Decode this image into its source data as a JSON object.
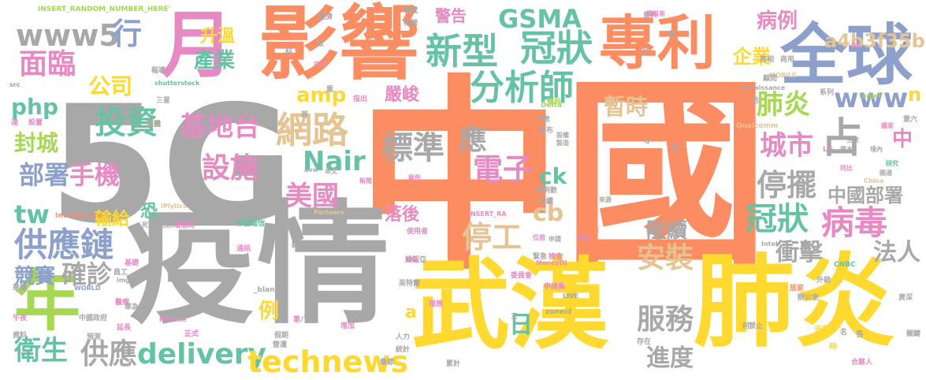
{
  "palette": {
    "gray": "#a8a8a8",
    "orange": "#fc8d62",
    "yellow": "#ffd92f",
    "blue": "#8da0cb",
    "pink": "#e78ac3",
    "green": "#66c2a5",
    "lime": "#a6d854",
    "tan": "#e5c494"
  },
  "words": [
    {
      "id": "zhongguo",
      "text": "中國",
      "color": "orange"
    },
    {
      "id": "5g",
      "text": "5G",
      "color": "gray"
    },
    {
      "id": "yiqing",
      "text": "疫情",
      "color": "gray"
    },
    {
      "id": "wuhan",
      "text": "武漢",
      "color": "yellow"
    },
    {
      "id": "feiyan-big",
      "text": "肺炎",
      "color": "yellow"
    },
    {
      "id": "yingxiang",
      "text": "影響",
      "color": "orange"
    },
    {
      "id": "zhuanli",
      "text": "專利",
      "color": "orange"
    },
    {
      "id": "quanqiu",
      "text": "全球",
      "color": "blue"
    },
    {
      "id": "yue",
      "text": "月",
      "color": "pink"
    },
    {
      "id": "nian",
      "text": "年",
      "color": "lime"
    },
    {
      "id": "xinxing",
      "text": "新型",
      "color": "green"
    },
    {
      "id": "guanzhuang-top",
      "text": "冠狀",
      "color": "green"
    },
    {
      "id": "gsma",
      "text": "GSMA",
      "color": "green"
    },
    {
      "id": "a4b3f35b",
      "text": "a4b3f35b",
      "color": "tan"
    },
    {
      "id": "www5",
      "text": "www5",
      "color": "gray"
    },
    {
      "id": "mianlin",
      "text": "面臨",
      "color": "pink"
    },
    {
      "id": "hang",
      "text": "行",
      "color": "blue"
    },
    {
      "id": "gongsi",
      "text": "公司",
      "color": "yellow"
    },
    {
      "id": "shengwen",
      "text": "升溫",
      "color": "yellow"
    },
    {
      "id": "chanye",
      "text": "產業",
      "color": "green"
    },
    {
      "id": "fenxishi",
      "text": "分析師",
      "color": "green"
    },
    {
      "id": "bingli",
      "text": "病例",
      "color": "pink"
    },
    {
      "id": "qiye",
      "text": "企業",
      "color": "yellow"
    },
    {
      "id": "zhan",
      "text": "占",
      "color": "gray"
    },
    {
      "id": "php",
      "text": "php",
      "color": "green"
    },
    {
      "id": "touzi",
      "text": "投資",
      "color": "green"
    },
    {
      "id": "amp",
      "text": "amp",
      "color": "yellow"
    },
    {
      "id": "yanjun",
      "text": "嚴峻",
      "color": "pink"
    },
    {
      "id": "zanshi",
      "text": "暫時",
      "color": "tan"
    },
    {
      "id": "feiyan-small",
      "text": "肺炎",
      "color": "lime"
    },
    {
      "id": "www",
      "text": "www",
      "color": "blue"
    },
    {
      "id": "fengcheng",
      "text": "封城",
      "color": "lime"
    },
    {
      "id": "jidetai",
      "text": "基地台",
      "color": "pink"
    },
    {
      "id": "wanglu",
      "text": "網路",
      "color": "tan"
    },
    {
      "id": "biaozhun",
      "text": "標準",
      "color": "gray"
    },
    {
      "id": "ying",
      "text": "應",
      "color": "gray"
    },
    {
      "id": "dianzi",
      "text": "電子",
      "color": "pink"
    },
    {
      "id": "chengshi",
      "text": "城市",
      "color": "pink"
    },
    {
      "id": "zhong",
      "text": "中",
      "color": "pink"
    },
    {
      "id": "bushu",
      "text": "部署",
      "color": "blue"
    },
    {
      "id": "shouji",
      "text": "手機",
      "color": "pink"
    },
    {
      "id": "sheshi",
      "text": "設施",
      "color": "pink"
    },
    {
      "id": "nair",
      "text": "Nair",
      "color": "green"
    },
    {
      "id": "ck",
      "text": "ck",
      "color": "green"
    },
    {
      "id": "tingbai",
      "text": "停擺",
      "color": "gray"
    },
    {
      "id": "zhongguo-bushu",
      "text": "中國部署",
      "color": "gray"
    },
    {
      "id": "tw",
      "text": "tw",
      "color": "green"
    },
    {
      "id": "meiguo",
      "text": "美國",
      "color": "pink"
    },
    {
      "id": "kong",
      "text": "恐",
      "color": "green"
    },
    {
      "id": "href",
      "text": "href",
      "color": "gray"
    },
    {
      "id": "cb",
      "text": "cb",
      "color": "tan"
    },
    {
      "id": "guanzhuang",
      "text": "冠狀",
      "color": "green"
    },
    {
      "id": "bingdu",
      "text": "病毒",
      "color": "pink"
    },
    {
      "id": "gongyinglian",
      "text": "供應鏈",
      "color": "blue"
    },
    {
      "id": "shuji",
      "text": "輸給",
      "color": "yellow"
    },
    {
      "id": "luohou",
      "text": "落後",
      "color": "pink"
    },
    {
      "id": "tinggong",
      "text": "停工",
      "color": "tan"
    },
    {
      "id": "chongji",
      "text": "衝擊",
      "color": "gray"
    },
    {
      "id": "faren",
      "text": "法人",
      "color": "gray"
    },
    {
      "id": "jingsai",
      "text": "競賽",
      "color": "blue"
    },
    {
      "id": "quezhen",
      "text": "確診",
      "color": "gray"
    },
    {
      "id": "anzhuang",
      "text": "安裝",
      "color": "tan"
    },
    {
      "id": "luxu",
      "text": "陸續",
      "color": "gray"
    },
    {
      "id": "li",
      "text": "例",
      "color": "yellow"
    },
    {
      "id": "ri",
      "text": "日",
      "color": "green"
    },
    {
      "id": "fuwu",
      "text": "服務",
      "color": "gray"
    },
    {
      "id": "weisheng",
      "text": "衛生",
      "color": "green"
    },
    {
      "id": "gongying",
      "text": "供應",
      "color": "gray"
    },
    {
      "id": "delivery",
      "text": "delivery",
      "color": "green"
    },
    {
      "id": "technews",
      "text": "technews",
      "color": "yellow"
    },
    {
      "id": "jindu",
      "text": "進度",
      "color": "gray"
    },
    {
      "id": "a",
      "text": "a",
      "color": "yellow"
    },
    {
      "id": "n",
      "text": "n",
      "color": "yellow"
    },
    {
      "id": "jinggao",
      "text": "警告",
      "color": "pink"
    },
    {
      "id": "insert-random",
      "text": "INSERT_RANDOM_NUMBER_HERE'",
      "color": "lime"
    },
    {
      "id": "shutterstock",
      "text": "shutterstock",
      "color": "green"
    },
    {
      "id": "renaissance",
      "text": "Renaissance",
      "color": "gray"
    },
    {
      "id": "mobile",
      "text": "MOBILE",
      "color": "tan"
    },
    {
      "id": "qualcomm",
      "text": "Qualcomm",
      "color": "tan"
    },
    {
      "id": "delta",
      "text": "Delta",
      "color": "lime"
    },
    {
      "id": "target",
      "text": "target",
      "color": "lime"
    },
    {
      "id": "vinod",
      "text": "Vinod",
      "color": "gray"
    },
    {
      "id": "iplytics",
      "text": "IPlytics",
      "color": "tan"
    },
    {
      "id": "intelligence",
      "text": "Intelligence",
      "color": "orange"
    },
    {
      "id": "partners",
      "text": "Partners",
      "color": "tan"
    },
    {
      "id": "insert-ra",
      "text": "INSERT_RA",
      "color": "pink"
    },
    {
      "id": "moneydj",
      "text": "MoneyDJ",
      "color": "pink"
    },
    {
      "id": "intel",
      "text": "Intel",
      "color": "gray"
    },
    {
      "id": "cnbc",
      "text": "CNBC",
      "color": "green"
    },
    {
      "id": "zoneid",
      "text": "zoneid",
      "color": "gray"
    },
    {
      "id": "live",
      "text": "LIVE",
      "color": "blue"
    },
    {
      "id": "world",
      "text": "WORLD",
      "color": "blue"
    },
    {
      "id": "iphone",
      "text": "iPhone",
      "color": "pink"
    },
    {
      "id": "img",
      "text": "img",
      "color": "gray"
    },
    {
      "id": "blank",
      "text": "_blank'",
      "color": "gray"
    },
    {
      "id": "avw",
      "text": "avw",
      "color": "gray"
    },
    {
      "id": "src",
      "text": "src",
      "color": "blue"
    },
    {
      "id": "lg",
      "text": "LG",
      "color": "pink"
    },
    {
      "id": "se",
      "text": "SE",
      "color": "pink"
    },
    {
      "id": "china",
      "text": "China",
      "color": "tan"
    },
    {
      "id": "g",
      "text": "G",
      "color": "gray"
    },
    {
      "id": "zhongguo-dianxin",
      "text": "中國電信",
      "color": "green"
    },
    {
      "id": "tongxun",
      "text": "通訊",
      "color": "pink"
    },
    {
      "id": "xinnian",
      "text": "新年",
      "color": "gray"
    },
    {
      "id": "yanchi",
      "text": "延伸",
      "color": "gray"
    },
    {
      "id": "gaotong",
      "text": "高通",
      "color": "gray"
    },
    {
      "id": "shiyongzhe",
      "text": "使用者",
      "color": "pink"
    },
    {
      "id": "zhiqu",
      "text": "指出",
      "color": "pink"
    },
    {
      "id": "jianxun",
      "text": "簡訊",
      "color": "lime"
    },
    {
      "id": "fabu",
      "text": "發布",
      "color": "gray"
    },
    {
      "id": "jianshu",
      "text": "件數",
      "color": "gray"
    },
    {
      "id": "shebei",
      "text": "設備",
      "color": "gray"
    },
    {
      "id": "zhizao",
      "text": "製造",
      "color": "gray"
    },
    {
      "id": "bingli-shu",
      "text": "病例數",
      "color": "gray"
    },
    {
      "id": "chixu",
      "text": "持續",
      "color": "gray"
    },
    {
      "id": "xinwen",
      "text": "新聞",
      "color": "pink"
    },
    {
      "id": "baogao",
      "text": "報告",
      "color": "pink"
    },
    {
      "id": "benwen",
      "text": "本文",
      "color": "gray"
    },
    {
      "id": "zhongyang",
      "text": "中央",
      "color": "pink"
    },
    {
      "id": "guojia",
      "text": "國家",
      "color": "pink"
    },
    {
      "id": "shengchan",
      "text": "生產",
      "color": "gray"
    },
    {
      "id": "ziben",
      "text": "資本",
      "color": "gray"
    },
    {
      "id": "jingnei",
      "text": "境內",
      "color": "gray"
    },
    {
      "id": "yanjiu",
      "text": "研究",
      "color": "green"
    },
    {
      "id": "kaitong",
      "text": "開通",
      "color": "gray"
    },
    {
      "id": "tongbi",
      "text": "同比",
      "color": "pink"
    },
    {
      "id": "laiyuan",
      "text": "來源",
      "color": "gray"
    },
    {
      "id": "fangyi",
      "text": "防疫",
      "color": "orange"
    },
    {
      "id": "paiming",
      "text": "排名",
      "color": "gray"
    },
    {
      "id": "shijian",
      "text": "時程",
      "color": "pink"
    },
    {
      "id": "weiju",
      "text": "位居",
      "color": "pink"
    },
    {
      "id": "shenqing",
      "text": "申請",
      "color": "gray"
    },
    {
      "id": "shenqingan",
      "text": "申請案",
      "color": "pink"
    },
    {
      "id": "jijian",
      "text": "緊急",
      "color": "gray"
    },
    {
      "id": "jiancha",
      "text": "檢查",
      "color": "pink"
    },
    {
      "id": "juyi",
      "text": "據報亞",
      "color": "gray"
    },
    {
      "id": "weiyuanhui",
      "text": "委員會",
      "color": "pink"
    },
    {
      "id": "yingtewei",
      "text": "英特爾",
      "color": "gray"
    },
    {
      "id": "cuoshi",
      "text": "措施",
      "color": "pink"
    },
    {
      "id": "shengji",
      "text": "升級",
      "color": "pink"
    },
    {
      "id": "diba",
      "text": "第八",
      "color": "pink"
    },
    {
      "id": "zengjia",
      "text": "增加",
      "color": "pink"
    },
    {
      "id": "renli",
      "text": "人力",
      "color": "gray"
    },
    {
      "id": "tongji",
      "text": "統計",
      "color": "gray"
    },
    {
      "id": "chunjie",
      "text": "春節",
      "color": "gray"
    },
    {
      "id": "leiji",
      "text": "累計",
      "color": "gray"
    },
    {
      "id": "hehuoren",
      "text": "合夥人",
      "color": "pink"
    },
    {
      "id": "guanjian",
      "text": "關鍵",
      "color": "gray"
    },
    {
      "id": "zishen",
      "text": "資深",
      "color": "gray"
    },
    {
      "id": "bangongshi",
      "text": "辦公室",
      "color": "gray"
    },
    {
      "id": "juzhai",
      "text": "居家",
      "color": "orange"
    },
    {
      "id": "waixiao",
      "text": "外銷",
      "color": "gray"
    },
    {
      "id": "tianji",
      "text": "田集",
      "color": "yellow"
    },
    {
      "id": "diliu",
      "text": "第六",
      "color": "gray"
    },
    {
      "id": "zhiliao",
      "text": "資料",
      "color": "gray"
    },
    {
      "id": "ziliaolai",
      "text": "資料來",
      "color": "pink"
    },
    {
      "id": "liangxiang",
      "text": "亮相",
      "color": "gray"
    },
    {
      "id": "shangyong",
      "text": "商用",
      "color": "gray"
    },
    {
      "id": "guwen",
      "text": "顧問",
      "color": "gray"
    },
    {
      "id": "xilie",
      "text": "系列",
      "color": "gray"
    },
    {
      "id": "shexi",
      "text": "設置",
      "color": "pink"
    },
    {
      "id": "baokuo",
      "text": "報導",
      "color": "gray"
    },
    {
      "id": "sanxing",
      "text": "三星",
      "color": "gray"
    },
    {
      "id": "gongbu",
      "text": "公布",
      "color": "gray"
    },
    {
      "id": "xianjin",
      "text": "先進",
      "color": "lime"
    },
    {
      "id": "zhengjing",
      "text": "整體",
      "color": "gray"
    },
    {
      "id": "yuqi",
      "text": "預計",
      "color": "gray"
    },
    {
      "id": "siwang",
      "text": "死亡",
      "color": "gray"
    },
    {
      "id": "dianxinju",
      "text": "電信局",
      "color": "pink"
    },
    {
      "id": "jichu",
      "text": "基礎",
      "color": "pink"
    },
    {
      "id": "yuangong",
      "text": "員工",
      "color": "gray"
    },
    {
      "id": "yiyuan",
      "text": "醫療",
      "color": "pink"
    },
    {
      "id": "huawei",
      "text": "華為",
      "color": "gray"
    },
    {
      "id": "huamei",
      "text": "華爾",
      "color": "gray"
    },
    {
      "id": "wuye",
      "text": "午夜",
      "color": "pink"
    },
    {
      "id": "zhengfu",
      "text": "中國政府",
      "color": "gray"
    },
    {
      "id": "yanqi",
      "text": "延長",
      "color": "pink"
    },
    {
      "id": "ziliao2",
      "text": "資料",
      "color": "gray"
    },
    {
      "id": "yuce",
      "text": "預測",
      "color": "gray"
    },
    {
      "id": "zhengshi",
      "text": "正式",
      "color": "pink"
    },
    {
      "id": "jiaqi",
      "text": "假期",
      "color": "gray"
    },
    {
      "id": "yingtong",
      "text": "營運",
      "color": "gray"
    },
    {
      "id": "zhuanjia",
      "text": "轉載",
      "color": "gray"
    },
    {
      "id": "xiangguan",
      "text": "相關",
      "color": "gray"
    },
    {
      "id": "ji",
      "text": "急",
      "color": "gray"
    },
    {
      "id": "jingji",
      "text": "經濟",
      "color": "gray"
    },
    {
      "id": "da",
      "text": "達",
      "color": "pink"
    },
    {
      "id": "ge",
      "text": "各",
      "color": "gray"
    },
    {
      "id": "shi",
      "text": "時",
      "color": "yellow"
    },
    {
      "id": "she",
      "text": "社",
      "color": "gray"
    },
    {
      "id": "zhong2",
      "text": "重",
      "color": "gray"
    },
    {
      "id": "san",
      "text": "三",
      "color": "gray"
    },
    {
      "id": "zhan2",
      "text": "估",
      "color": "gray"
    },
    {
      "id": "jia",
      "text": "家",
      "color": "gray"
    },
    {
      "id": "ming",
      "text": "名",
      "color": "gray"
    },
    {
      "id": "jinzhi",
      "text": "禁止",
      "color": "gray"
    },
    {
      "id": "cunzai",
      "text": "存在",
      "color": "gray"
    },
    {
      "id": "chang",
      "text": "長",
      "color": "gray"
    },
    {
      "id": "qian",
      "text": "前",
      "color": "gray"
    },
    {
      "id": "ke",
      "text": "科",
      "color": "gray"
    },
    {
      "id": "shou",
      "text": "首",
      "color": "gray"
    }
  ]
}
